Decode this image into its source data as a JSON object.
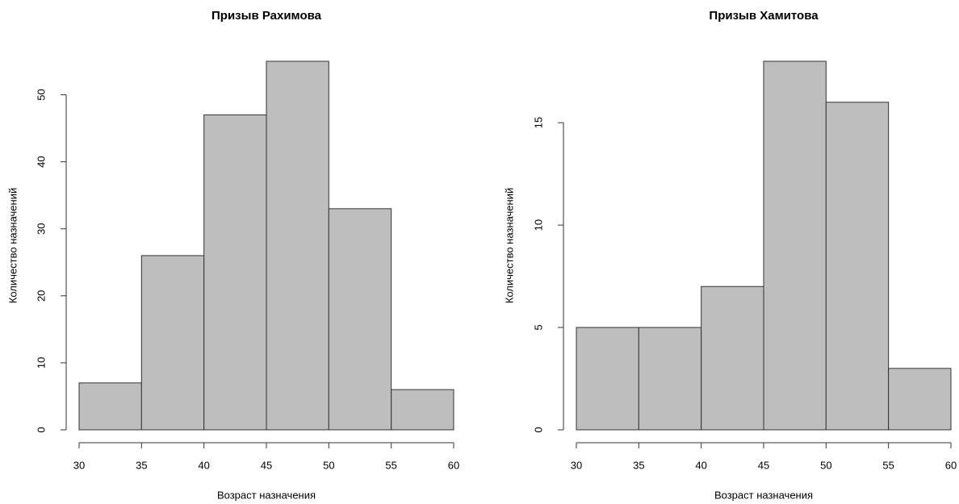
{
  "chart_data": [
    {
      "type": "histogram",
      "title": "Призыв Рахимова",
      "x_label": "Возраст назначения",
      "y_label": "Количество назначений",
      "bins": [
        30,
        35,
        40,
        45,
        50,
        55,
        60
      ],
      "values": [
        7,
        26,
        47,
        55,
        33,
        6
      ],
      "color": "#bebebe",
      "xlim": [
        30,
        60
      ],
      "ylim": [
        0,
        55
      ],
      "xticks": [
        30,
        35,
        40,
        45,
        50,
        55,
        60
      ],
      "yticks": [
        0,
        10,
        20,
        30,
        40,
        50
      ]
    },
    {
      "type": "histogram",
      "title": "Призыв Хамитова",
      "x_label": "Возраст назначения",
      "y_label": "Количество назначений",
      "bins": [
        30,
        35,
        40,
        45,
        50,
        55,
        60
      ],
      "values": [
        5,
        5,
        7,
        18,
        16,
        3
      ],
      "color": "#bebebe",
      "xlim": [
        30,
        60
      ],
      "ylim": [
        0,
        18
      ],
      "xticks": [
        30,
        35,
        40,
        45,
        50,
        55,
        60
      ],
      "yticks": [
        0,
        5,
        10,
        15
      ]
    }
  ]
}
